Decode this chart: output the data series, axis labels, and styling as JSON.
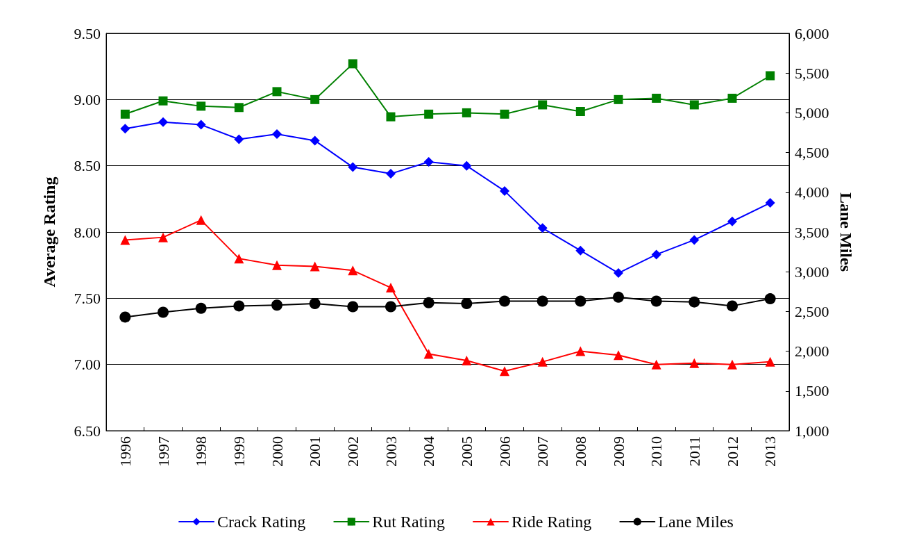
{
  "chart_data": {
    "type": "line",
    "xlabel": null,
    "ylabel": "Average Rating",
    "y2label": "Lane Miles",
    "categories": [
      "1996",
      "1997",
      "1998",
      "1999",
      "2000",
      "2001",
      "2002",
      "2003",
      "2004",
      "2005",
      "2006",
      "2007",
      "2008",
      "2009",
      "2010",
      "2011",
      "2012",
      "2013"
    ],
    "series": [
      {
        "name": "Crack Rating",
        "color": "#0000ff",
        "marker": "diamond",
        "values": [
          8.78,
          8.83,
          8.81,
          8.7,
          8.74,
          8.69,
          8.49,
          8.44,
          8.53,
          8.5,
          8.31,
          8.03,
          7.86,
          7.69,
          7.83,
          7.94,
          8.08,
          8.22
        ]
      },
      {
        "name": "Rut Rating",
        "color": "#008000",
        "marker": "square",
        "values": [
          8.89,
          8.99,
          8.95,
          8.94,
          9.06,
          9.0,
          9.27,
          8.87,
          8.89,
          8.9,
          8.89,
          8.96,
          8.91,
          9.0,
          9.01,
          8.96,
          9.01,
          9.18
        ]
      },
      {
        "name": "Ride Rating",
        "color": "#ff0000",
        "marker": "triangle",
        "values": [
          7.94,
          7.96,
          8.09,
          7.8,
          7.75,
          7.74,
          7.71,
          7.58,
          7.08,
          7.03,
          6.95,
          7.02,
          7.1,
          7.07,
          7.0,
          7.01,
          7.0,
          7.02
        ]
      },
      {
        "name": "Lane Miles",
        "color": "#000000",
        "marker": "circle",
        "axis": "y2",
        "values": [
          2430,
          2490,
          2540,
          2570,
          2580,
          2600,
          2560,
          2560,
          2610,
          2600,
          2630,
          2630,
          2630,
          2680,
          2630,
          2620,
          2570,
          2660
        ]
      }
    ],
    "ylim": [
      6.5,
      9.5
    ],
    "yticks": [
      {
        "value": 6.5,
        "label": "6.50"
      },
      {
        "value": 7,
        "label": "7.00"
      },
      {
        "value": 7.5,
        "label": "7.50"
      },
      {
        "value": 8,
        "label": "8.00"
      },
      {
        "value": 8.5,
        "label": "8.50"
      },
      {
        "value": 9,
        "label": "9.00"
      },
      {
        "value": 9.5,
        "label": "9.50"
      }
    ],
    "y2lim": [
      1000,
      6000
    ],
    "y2ticks": [
      {
        "value": 1000,
        "label": "1,000"
      },
      {
        "value": 1500,
        "label": "1,500"
      },
      {
        "value": 2000,
        "label": "2,000"
      },
      {
        "value": 2500,
        "label": "2,500"
      },
      {
        "value": 3000,
        "label": "3,000"
      },
      {
        "value": 3500,
        "label": "3,500"
      },
      {
        "value": 4000,
        "label": "4,000"
      },
      {
        "value": 4500,
        "label": "4,500"
      },
      {
        "value": 5000,
        "label": "5,000"
      },
      {
        "value": 5500,
        "label": "5,500"
      },
      {
        "value": 6000,
        "label": "6,000"
      }
    ],
    "grid": "y",
    "legend": "bottom",
    "line_style": "solid"
  }
}
